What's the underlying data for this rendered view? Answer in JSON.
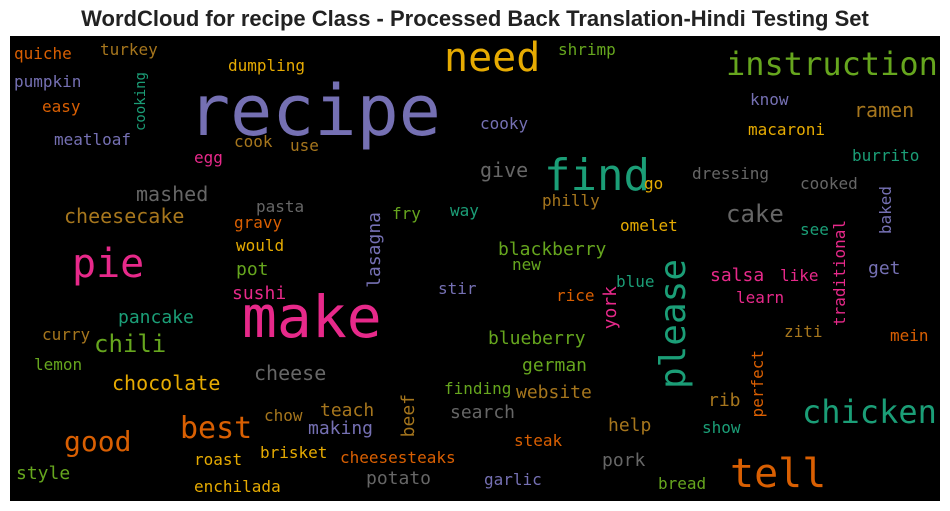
{
  "chart_data": {
    "type": "wordcloud",
    "title": "WordCloud for recipe Class - Processed Back Translation-Hindi Testing Set",
    "background": "#000000",
    "words": [
      {
        "text": "recipe",
        "color": "#7570b3",
        "vertical": false
      },
      {
        "text": "make",
        "color": "#e7298a",
        "vertical": false
      },
      {
        "text": "need",
        "color": "#e6ab02",
        "vertical": false
      },
      {
        "text": "find",
        "color": "#1b9e77",
        "vertical": false
      },
      {
        "text": "please",
        "color": "#1b9e77",
        "vertical": true
      },
      {
        "text": "pie",
        "color": "#e7298a",
        "vertical": false
      },
      {
        "text": "tell",
        "color": "#d95f02",
        "vertical": false
      },
      {
        "text": "instruction",
        "color": "#66a61e",
        "vertical": false
      },
      {
        "text": "chicken",
        "color": "#1b9e77",
        "vertical": false
      },
      {
        "text": "best",
        "color": "#d95f02",
        "vertical": false
      },
      {
        "text": "good",
        "color": "#d95f02",
        "vertical": false
      },
      {
        "text": "cake",
        "color": "#666666",
        "vertical": false
      },
      {
        "text": "chili",
        "color": "#66a61e",
        "vertical": false
      },
      {
        "text": "ramen",
        "color": "#a6761d",
        "vertical": false
      },
      {
        "text": "mashed",
        "color": "#666666",
        "vertical": false
      },
      {
        "text": "cheesecake",
        "color": "#a6761d",
        "vertical": false
      },
      {
        "text": "give",
        "color": "#666666",
        "vertical": false
      },
      {
        "text": "chocolate",
        "color": "#e6ab02",
        "vertical": false
      },
      {
        "text": "cheese",
        "color": "#666666",
        "vertical": false
      },
      {
        "text": "blackberry",
        "color": "#66a61e",
        "vertical": false
      },
      {
        "text": "blueberry",
        "color": "#66a61e",
        "vertical": false
      },
      {
        "text": "german",
        "color": "#66a61e",
        "vertical": false
      },
      {
        "text": "website",
        "color": "#a6761d",
        "vertical": false
      },
      {
        "text": "search",
        "color": "#666666",
        "vertical": false
      },
      {
        "text": "teach",
        "color": "#a6761d",
        "vertical": false
      },
      {
        "text": "making",
        "color": "#7570b3",
        "vertical": false
      },
      {
        "text": "potato",
        "color": "#666666",
        "vertical": false
      },
      {
        "text": "pork",
        "color": "#666666",
        "vertical": false
      },
      {
        "text": "help",
        "color": "#a6761d",
        "vertical": false
      },
      {
        "text": "rib",
        "color": "#a6761d",
        "vertical": false
      },
      {
        "text": "pancake",
        "color": "#1b9e77",
        "vertical": false
      },
      {
        "text": "sushi",
        "color": "#e7298a",
        "vertical": false
      },
      {
        "text": "pot",
        "color": "#66a61e",
        "vertical": false
      },
      {
        "text": "salsa",
        "color": "#e7298a",
        "vertical": false
      },
      {
        "text": "get",
        "color": "#7570b3",
        "vertical": false
      },
      {
        "text": "new",
        "color": "#66a61e",
        "vertical": false
      },
      {
        "text": "style",
        "color": "#66a61e",
        "vertical": false
      },
      {
        "text": "lasagna",
        "color": "#7570b3",
        "vertical": true
      },
      {
        "text": "beef",
        "color": "#a6761d",
        "vertical": true
      },
      {
        "text": "york",
        "color": "#e7298a",
        "vertical": true
      },
      {
        "text": "macaroni",
        "color": "#e6ab02",
        "vertical": false
      },
      {
        "text": "burrito",
        "color": "#1b9e77",
        "vertical": false
      },
      {
        "text": "dressing",
        "color": "#666666",
        "vertical": false
      },
      {
        "text": "cooked",
        "color": "#666666",
        "vertical": false
      },
      {
        "text": "omelet",
        "color": "#e6ab02",
        "vertical": false
      },
      {
        "text": "philly",
        "color": "#a6761d",
        "vertical": false
      },
      {
        "text": "cooky",
        "color": "#7570b3",
        "vertical": false
      },
      {
        "text": "know",
        "color": "#7570b3",
        "vertical": false
      },
      {
        "text": "shrimp",
        "color": "#66a61e",
        "vertical": false
      },
      {
        "text": "dumpling",
        "color": "#e6ab02",
        "vertical": false
      },
      {
        "text": "turkey",
        "color": "#a6761d",
        "vertical": false
      },
      {
        "text": "quiche",
        "color": "#d95f02",
        "vertical": false
      },
      {
        "text": "pumpkin",
        "color": "#7570b3",
        "vertical": false
      },
      {
        "text": "easy",
        "color": "#d95f02",
        "vertical": false
      },
      {
        "text": "cooking",
        "color": "#1b9e77",
        "vertical": true
      },
      {
        "text": "meatloaf",
        "color": "#7570b3",
        "vertical": false
      },
      {
        "text": "egg",
        "color": "#e7298a",
        "vertical": false
      },
      {
        "text": "cook",
        "color": "#a6761d",
        "vertical": false
      },
      {
        "text": "use",
        "color": "#a6761d",
        "vertical": false
      },
      {
        "text": "pasta",
        "color": "#666666",
        "vertical": false
      },
      {
        "text": "gravy",
        "color": "#d95f02",
        "vertical": false
      },
      {
        "text": "would",
        "color": "#e6ab02",
        "vertical": false
      },
      {
        "text": "fry",
        "color": "#66a61e",
        "vertical": false
      },
      {
        "text": "way",
        "color": "#1b9e77",
        "vertical": false
      },
      {
        "text": "go",
        "color": "#e6ab02",
        "vertical": false
      },
      {
        "text": "baked",
        "color": "#7570b3",
        "vertical": true
      },
      {
        "text": "see",
        "color": "#1b9e77",
        "vertical": false
      },
      {
        "text": "traditional",
        "color": "#e7298a",
        "vertical": true
      },
      {
        "text": "like",
        "color": "#e7298a",
        "vertical": false
      },
      {
        "text": "learn",
        "color": "#e7298a",
        "vertical": false
      },
      {
        "text": "blue",
        "color": "#1b9e77",
        "vertical": false
      },
      {
        "text": "stir",
        "color": "#7570b3",
        "vertical": false
      },
      {
        "text": "rice",
        "color": "#d95f02",
        "vertical": false
      },
      {
        "text": "ziti",
        "color": "#a6761d",
        "vertical": false
      },
      {
        "text": "mein",
        "color": "#d95f02",
        "vertical": false
      },
      {
        "text": "perfect",
        "color": "#d95f02",
        "vertical": true
      },
      {
        "text": "curry",
        "color": "#a6761d",
        "vertical": false
      },
      {
        "text": "lemon",
        "color": "#66a61e",
        "vertical": false
      },
      {
        "text": "finding",
        "color": "#66a61e",
        "vertical": false
      },
      {
        "text": "chow",
        "color": "#a6761d",
        "vertical": false
      },
      {
        "text": "steak",
        "color": "#d95f02",
        "vertical": false
      },
      {
        "text": "show",
        "color": "#1b9e77",
        "vertical": false
      },
      {
        "text": "roast",
        "color": "#e6ab02",
        "vertical": false
      },
      {
        "text": "brisket",
        "color": "#e6ab02",
        "vertical": false
      },
      {
        "text": "cheesesteaks",
        "color": "#d95f02",
        "vertical": false
      },
      {
        "text": "garlic",
        "color": "#7570b3",
        "vertical": false
      },
      {
        "text": "bread",
        "color": "#66a61e",
        "vertical": false
      },
      {
        "text": "enchilada",
        "color": "#e6ab02",
        "vertical": false
      }
    ]
  }
}
